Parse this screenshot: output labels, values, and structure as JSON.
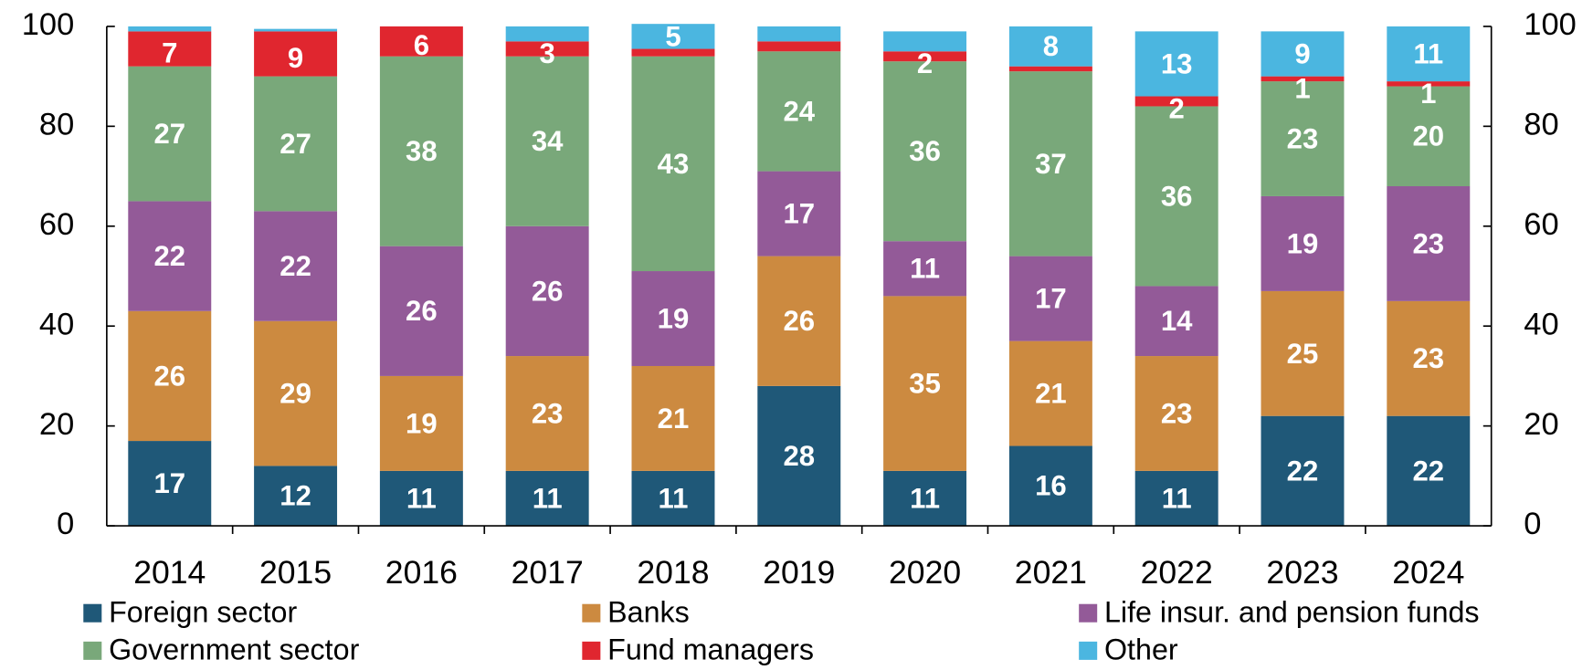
{
  "chart_data": {
    "type": "stacked_bar",
    "categories": [
      "2014",
      "2015",
      "2016",
      "2017",
      "2018",
      "2019",
      "2020",
      "2021",
      "2022",
      "2023",
      "2024"
    ],
    "ylim": [
      0,
      100
    ],
    "yticks": [
      0,
      20,
      40,
      60,
      80,
      100
    ],
    "y2lim": [
      0,
      100
    ],
    "y2ticks": [
      0,
      20,
      40,
      60,
      80,
      100
    ],
    "legend": "bottom",
    "series": [
      {
        "name": "Foreign sector",
        "color": "#1f5878",
        "values": [
          17,
          12,
          11,
          11,
          11,
          28,
          11,
          16,
          11,
          22,
          22
        ],
        "value_labels": [
          "17",
          "12",
          "11",
          "11",
          "11",
          "28",
          "11",
          "16",
          "11",
          "22",
          "22"
        ]
      },
      {
        "name": "Banks",
        "color": "#cc8a40",
        "values": [
          26,
          29,
          19,
          23,
          21,
          26,
          35,
          21,
          23,
          25,
          23
        ],
        "value_labels": [
          "26",
          "29",
          "19",
          "23",
          "21",
          "26",
          "35",
          "21",
          "23",
          "25",
          "23"
        ]
      },
      {
        "name": "Life insur. and pension funds",
        "color": "#935a98",
        "values": [
          22,
          22,
          26,
          26,
          19,
          17,
          11,
          17,
          14,
          19,
          23
        ],
        "value_labels": [
          "22",
          "22",
          "26",
          "26",
          "19",
          "17",
          "11",
          "17",
          "14",
          "19",
          "23"
        ]
      },
      {
        "name": "Government sector",
        "color": "#79a87a",
        "values": [
          27,
          27,
          38,
          34,
          43,
          24,
          36,
          37,
          36,
          23,
          20
        ],
        "value_labels": [
          "27",
          "27",
          "38",
          "34",
          "43",
          "24",
          "36",
          "37",
          "36",
          "23",
          "20"
        ]
      },
      {
        "name": "Fund managers",
        "color": "#e0262f",
        "values": [
          7,
          9,
          6,
          3,
          1.5,
          2,
          2,
          1,
          2,
          1,
          1
        ],
        "value_labels": [
          "7",
          "9",
          "6",
          "3",
          null,
          null,
          "2",
          null,
          "2",
          "1",
          "1"
        ]
      },
      {
        "name": "Other",
        "color": "#4bb6e0",
        "values": [
          1,
          0.5,
          0,
          3,
          5,
          3,
          4,
          8,
          13,
          9,
          11
        ],
        "value_labels": [
          null,
          null,
          null,
          null,
          "5",
          null,
          null,
          "8",
          "13",
          "9",
          "11"
        ]
      }
    ]
  }
}
